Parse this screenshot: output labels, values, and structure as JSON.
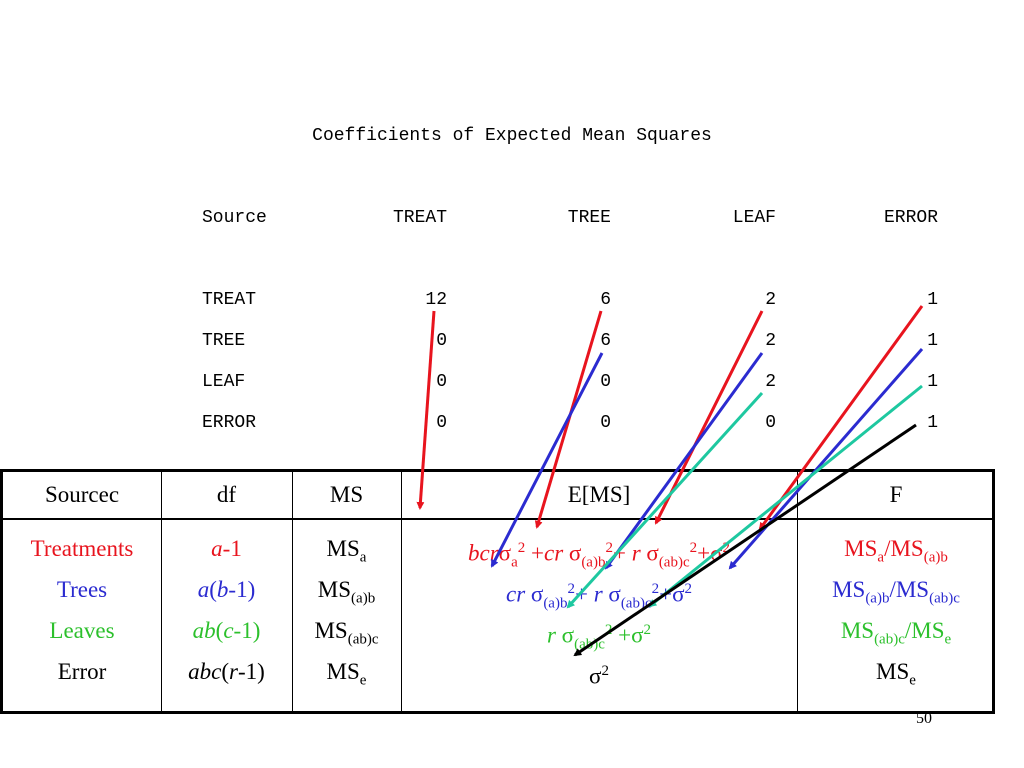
{
  "title": "Coefficients of Expected Mean Squares",
  "coef_table": {
    "headers": [
      "Source",
      "TREAT",
      "TREE",
      "LEAF",
      "ERROR"
    ],
    "rows": [
      {
        "source": "TREAT",
        "values": [
          "12",
          "6",
          "2",
          "1"
        ]
      },
      {
        "source": "TREE",
        "values": [
          "0",
          "6",
          "2",
          "1"
        ]
      },
      {
        "source": "LEAF",
        "values": [
          "0",
          "0",
          "2",
          "1"
        ]
      },
      {
        "source": "ERROR",
        "values": [
          "0",
          "0",
          "0",
          "1"
        ]
      }
    ]
  },
  "anova": {
    "headers": {
      "source": "Sourcec",
      "df": "df",
      "ms": "MS",
      "ems": "E[MS]",
      "f": "F"
    },
    "sources": [
      "Treatments",
      "Trees",
      "Leaves",
      "Error"
    ],
    "df": [
      {
        "a": "a",
        "b": "-1"
      },
      {
        "a": "a",
        "b": "(",
        "c": "b",
        "d": "-1)"
      },
      {
        "a": "ab",
        "b": "(",
        "c": "c",
        "d": "-1)"
      },
      {
        "a": "abc",
        "b": "(",
        "c": "r",
        "d": "-1)"
      }
    ],
    "ms": [
      {
        "base": "MS",
        "sub": "a"
      },
      {
        "base": "MS",
        "sub": "(a)b"
      },
      {
        "base": "MS",
        "sub": "(ab)c"
      },
      {
        "base": "MS",
        "sub": "e"
      }
    ],
    "ems": {
      "row1": {
        "t1": "bcr",
        "s": "σ",
        "sub1": "a",
        "sup": "2",
        "t2": " +",
        "t3": "cr",
        "sub2": "(a)b",
        "t4": "+ ",
        "t5": "r",
        "sub3": "(ab)c",
        "t6": "+σ"
      },
      "row2": {
        "t1": "cr",
        "s": "σ",
        "sub1": "(a)b",
        "sup": "2",
        "t2": "+ ",
        "t3": "r",
        "sub2": "(ab)c",
        "t4": "+σ"
      },
      "row3": {
        "t1": "r",
        "s": "σ",
        "sub1": "(ab)c",
        "sup": "2",
        "t2": " +σ"
      },
      "row4": {
        "s": "σ",
        "sup": "2"
      }
    },
    "f": [
      {
        "n": "MS",
        "nsub": "a",
        "d": "/MS",
        "dsub": "(a)b"
      },
      {
        "n": "MS",
        "nsub": "(a)b",
        "d": "/MS",
        "dsub": "(ab)c"
      },
      {
        "n": "MS",
        "nsub": "(ab)c",
        "d": "/MS",
        "dsub": "e"
      },
      {
        "n": "MS",
        "nsub": "e"
      }
    ]
  },
  "colors": {
    "red": "#e8141e",
    "blue": "#2b2bd0",
    "green": "#2cc02c",
    "teal": "#1ec8a0",
    "black": "#000000"
  },
  "page_number": "50"
}
